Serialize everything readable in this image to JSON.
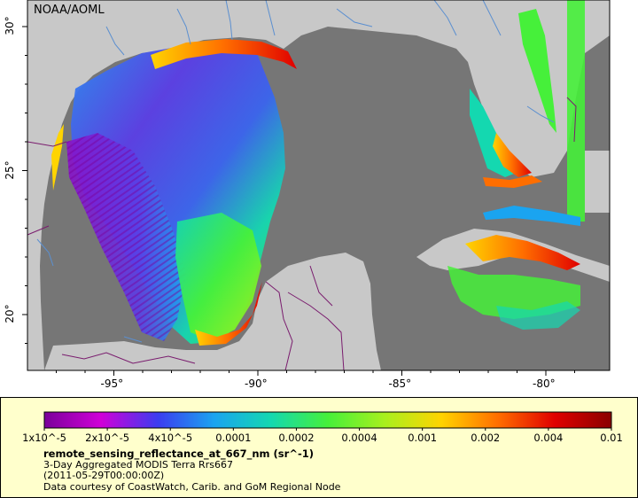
{
  "map": {
    "credit": "NOAA/AOML",
    "x_ticks": [
      {
        "label": "-95°",
        "lon": -95
      },
      {
        "label": "-90°",
        "lon": -90
      },
      {
        "label": "-85°",
        "lon": -85
      },
      {
        "label": "-80°",
        "lon": -80
      }
    ],
    "y_ticks": [
      {
        "label": "30°",
        "lat": 30
      },
      {
        "label": "25°",
        "lat": 25
      },
      {
        "label": "20°",
        "lat": 20
      }
    ],
    "colors": {
      "land": "#c8c8c8",
      "ocean_nodata": "#767676",
      "borders": "#7a1c6e",
      "rivers": "#5b8fd0"
    }
  },
  "legend": {
    "colorbar_labels": [
      "1x10^-5",
      "2x10^-5",
      "4x10^-5",
      "0.0001",
      "0.0002",
      "0.0004",
      "0.001",
      "0.002",
      "0.004",
      "0.01"
    ],
    "colorbar_colors": [
      "#7a009a",
      "#d000d8",
      "#3c3cf0",
      "#1aa4f0",
      "#14d8b0",
      "#46f03a",
      "#a8f01e",
      "#ffd400",
      "#ff6e00",
      "#e00000",
      "#8a0000"
    ],
    "title": "remote_sensing_reflectance_at_667_nm (sr^-1)",
    "subtitle": "3-Day Aggregated MODIS Terra Rrs667",
    "date": "(2011-05-29T00:00:00Z)",
    "source": "Data courtesy of CoastWatch, Carib. and GoM Regional Node"
  }
}
